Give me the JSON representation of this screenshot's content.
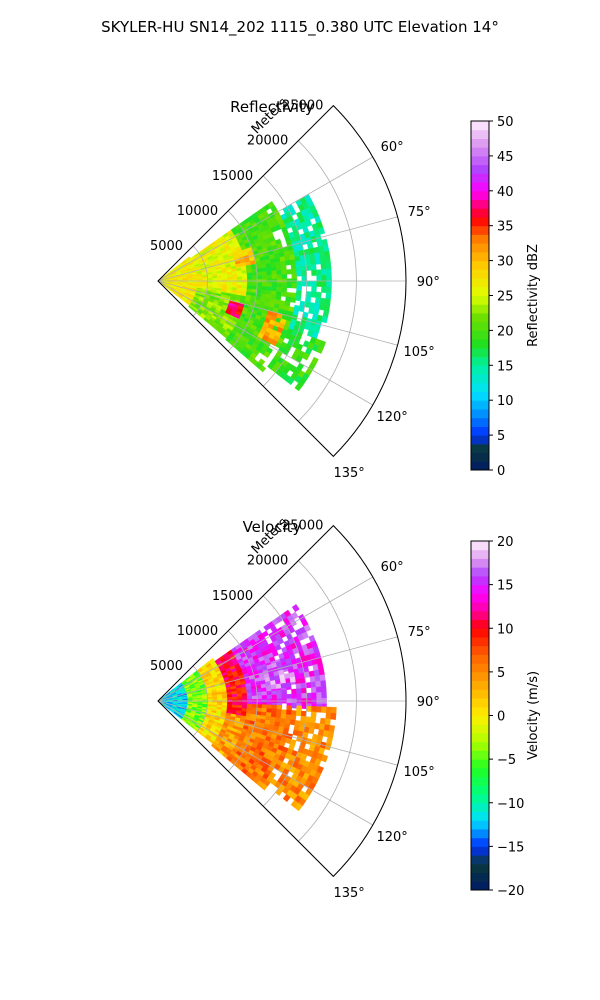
{
  "figure_title": "SKYLER-HU  SN14_202  1115_0.380 UTC Elevation 14°",
  "chart_data": [
    {
      "type": "heatmap",
      "subtype": "polar-ppi-sector",
      "title": "Reflectivity",
      "range_axis_label": "Meters",
      "range_ticks": [
        5000,
        10000,
        15000,
        20000,
        25000
      ],
      "range_limit": [
        0,
        25000
      ],
      "angle_ticks_deg": [
        60,
        75,
        90,
        105,
        120,
        135
      ],
      "angle_tick_labels": [
        "60°",
        "75°",
        "90°",
        "105°",
        "120°",
        "135°"
      ],
      "sector_deg": [
        45,
        135
      ],
      "grid": true,
      "colorbar": {
        "label": "Reflectivity dBZ",
        "min": 0,
        "max": 50,
        "ticks": [
          0,
          5,
          10,
          15,
          20,
          25,
          30,
          35,
          40,
          45,
          50
        ],
        "tick_labels": [
          "0",
          "5",
          "10",
          "15",
          "20",
          "25",
          "30",
          "35",
          "40",
          "45",
          "50"
        ],
        "stops": [
          {
            "v": 0,
            "c": "#001a66"
          },
          {
            "v": 3,
            "c": "#0a3a3a"
          },
          {
            "v": 5,
            "c": "#0030ff"
          },
          {
            "v": 8,
            "c": "#0090ff"
          },
          {
            "v": 11,
            "c": "#00e0ff"
          },
          {
            "v": 15,
            "c": "#00f0a0"
          },
          {
            "v": 18,
            "c": "#20e020"
          },
          {
            "v": 22,
            "c": "#70e000"
          },
          {
            "v": 25,
            "c": "#e0ff00"
          },
          {
            "v": 29,
            "c": "#ffd000"
          },
          {
            "v": 33,
            "c": "#ff8000"
          },
          {
            "v": 36,
            "c": "#ff0000"
          },
          {
            "v": 40,
            "c": "#ff00ff"
          },
          {
            "v": 43,
            "c": "#b040ff"
          },
          {
            "v": 47,
            "c": "#e0a0f0"
          },
          {
            "v": 50,
            "c": "#fff0ff"
          }
        ]
      },
      "echo_regions": [
        {
          "r_min": 0,
          "r_max": 4000,
          "az_min": 52,
          "az_max": 128,
          "value": 27
        },
        {
          "r_min": 4000,
          "r_max": 9000,
          "az_min": 55,
          "az_max": 100,
          "value": 26
        },
        {
          "r_min": 4000,
          "r_max": 9000,
          "az_min": 100,
          "az_max": 130,
          "value": 22
        },
        {
          "r_min": 9000,
          "r_max": 14000,
          "az_min": 55,
          "az_max": 95,
          "value": 20
        },
        {
          "r_min": 9000,
          "r_max": 14000,
          "az_min": 95,
          "az_max": 130,
          "value": 20
        },
        {
          "r_min": 14000,
          "r_max": 17500,
          "az_min": 60,
          "az_max": 110,
          "value": 15
        },
        {
          "r_min": 14000,
          "r_max": 18000,
          "az_min": 110,
          "az_max": 128,
          "value": 19
        },
        {
          "r_min": 7500,
          "r_max": 9000,
          "az_min": 105,
          "az_max": 115,
          "value": 37
        },
        {
          "r_min": 11500,
          "r_max": 13500,
          "az_min": 105,
          "az_max": 118,
          "value": 31
        },
        {
          "r_min": 8000,
          "r_max": 10000,
          "az_min": 70,
          "az_max": 80,
          "value": 30
        }
      ]
    },
    {
      "type": "heatmap",
      "subtype": "polar-ppi-sector",
      "title": "Velocity",
      "range_axis_label": "Meters",
      "range_ticks": [
        5000,
        10000,
        15000,
        20000,
        25000
      ],
      "range_limit": [
        0,
        25000
      ],
      "angle_ticks_deg": [
        60,
        75,
        90,
        105,
        120,
        135
      ],
      "angle_tick_labels": [
        "60°",
        "75°",
        "90°",
        "105°",
        "120°",
        "135°"
      ],
      "sector_deg": [
        45,
        135
      ],
      "grid": true,
      "colorbar": {
        "label": "Velocity (m/s)",
        "min": -20,
        "max": 20,
        "ticks": [
          -20,
          -15,
          -10,
          -5,
          0,
          5,
          10,
          15,
          20
        ],
        "tick_labels": [
          "−20",
          "−15",
          "−10",
          "−5",
          "0",
          "5",
          "10",
          "15",
          "20"
        ],
        "stops": [
          {
            "v": -20,
            "c": "#001a66"
          },
          {
            "v": -17,
            "c": "#0a3a3a"
          },
          {
            "v": -15,
            "c": "#0030ff"
          },
          {
            "v": -12,
            "c": "#00e0ff"
          },
          {
            "v": -9,
            "c": "#00ff80"
          },
          {
            "v": -6,
            "c": "#20ff20"
          },
          {
            "v": -3,
            "c": "#b0ff00"
          },
          {
            "v": 0,
            "c": "#ffee00"
          },
          {
            "v": 4,
            "c": "#ffa000"
          },
          {
            "v": 7,
            "c": "#ff6000"
          },
          {
            "v": 10,
            "c": "#ff0000"
          },
          {
            "v": 12,
            "c": "#ff00a0"
          },
          {
            "v": 14,
            "c": "#ff00ff"
          },
          {
            "v": 16,
            "c": "#b040ff"
          },
          {
            "v": 18,
            "c": "#e0a0f0"
          },
          {
            "v": 20,
            "c": "#fff0ff"
          }
        ]
      },
      "echo_regions": [
        {
          "r_min": 0,
          "r_max": 3000,
          "az_min": 52,
          "az_max": 128,
          "value": -12
        },
        {
          "r_min": 3000,
          "r_max": 5000,
          "az_min": 52,
          "az_max": 128,
          "value": -4
        },
        {
          "r_min": 5000,
          "r_max": 7000,
          "az_min": 52,
          "az_max": 128,
          "value": 1
        },
        {
          "r_min": 7000,
          "r_max": 9000,
          "az_min": 55,
          "az_max": 100,
          "value": 10
        },
        {
          "r_min": 7000,
          "r_max": 9000,
          "az_min": 100,
          "az_max": 130,
          "value": 4
        },
        {
          "r_min": 9000,
          "r_max": 17000,
          "az_min": 55,
          "az_max": 92,
          "value": 15
        },
        {
          "r_min": 9000,
          "r_max": 14000,
          "az_min": 92,
          "az_max": 130,
          "value": 6
        },
        {
          "r_min": 14000,
          "r_max": 18000,
          "az_min": 92,
          "az_max": 128,
          "value": 5
        },
        {
          "r_min": 11000,
          "r_max": 14000,
          "az_min": 72,
          "az_max": 84,
          "value": 17
        }
      ]
    }
  ]
}
